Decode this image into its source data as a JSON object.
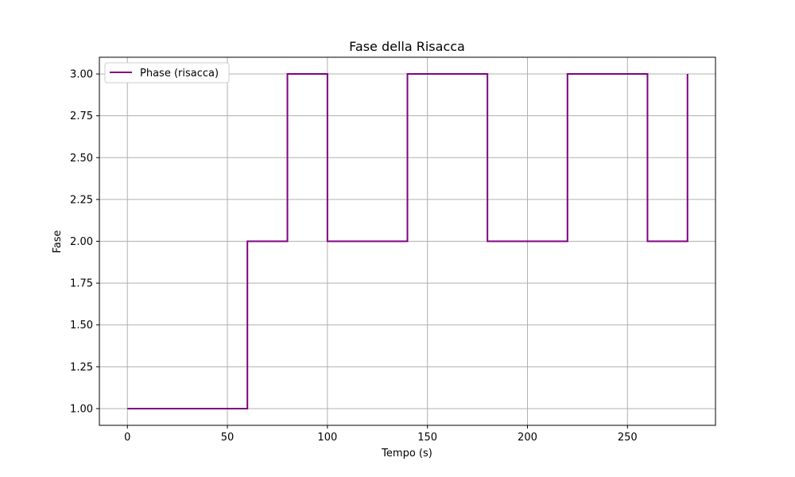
{
  "chart_data": {
    "type": "line",
    "title": "Fase della Risacca",
    "xlabel": "Tempo (s)",
    "ylabel": "Fase",
    "xlim": [
      -14,
      294
    ],
    "ylim": [
      0.9,
      3.1
    ],
    "xticks": [
      0,
      50,
      100,
      150,
      200,
      250
    ],
    "yticks": [
      1.0,
      1.25,
      1.5,
      1.75,
      2.0,
      2.25,
      2.5,
      2.75,
      3.0
    ],
    "xtick_labels": [
      "0",
      "50",
      "100",
      "150",
      "200",
      "250"
    ],
    "ytick_labels": [
      "1.00",
      "1.25",
      "1.50",
      "1.75",
      "2.00",
      "2.25",
      "2.50",
      "2.75",
      "3.00"
    ],
    "grid": true,
    "legend_position": "top-left",
    "series": [
      {
        "name": "Phase (risacca)",
        "color": "#800080",
        "x": [
          0,
          60,
          60,
          80,
          80,
          100,
          100,
          140,
          140,
          180,
          180,
          220,
          220,
          260,
          260,
          280,
          280
        ],
        "y": [
          1,
          1,
          2,
          2,
          3,
          3,
          2,
          2,
          3,
          3,
          2,
          2,
          3,
          3,
          2,
          2,
          3
        ]
      }
    ]
  }
}
